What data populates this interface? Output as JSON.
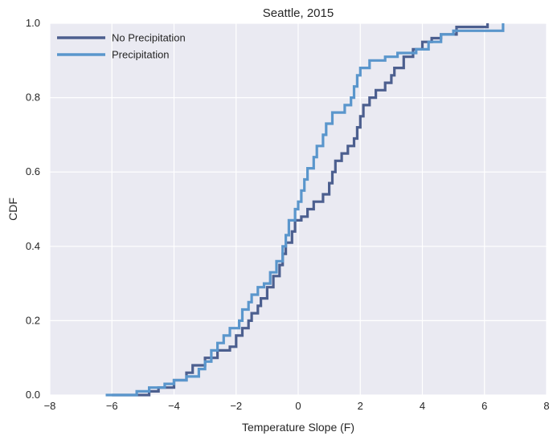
{
  "chart_data": {
    "type": "line",
    "title": "Seattle, 2015",
    "xlabel": "Temperature Slope (F)",
    "ylabel": "CDF",
    "xlim": [
      -8,
      8
    ],
    "ylim": [
      0.0,
      1.0
    ],
    "xticks": [
      -8,
      -6,
      -4,
      -2,
      0,
      2,
      4,
      6,
      8
    ],
    "xtick_labels": [
      "−8",
      "−6",
      "−4",
      "−2",
      "0",
      "2",
      "4",
      "6",
      "8"
    ],
    "yticks": [
      0.0,
      0.2,
      0.4,
      0.6,
      0.8,
      1.0
    ],
    "ytick_labels": [
      "0.0",
      "0.2",
      "0.4",
      "0.6",
      "0.8",
      "1.0"
    ],
    "grid": true,
    "legend_position": "top-left",
    "background": "#EAEAF2",
    "series": [
      {
        "name": "No Precipitation",
        "color": "#4C5F8F",
        "step": true,
        "points": [
          [
            -6.0,
            0.0
          ],
          [
            -4.8,
            0.01
          ],
          [
            -4.5,
            0.02
          ],
          [
            -4.0,
            0.04
          ],
          [
            -3.6,
            0.06
          ],
          [
            -3.4,
            0.08
          ],
          [
            -3.0,
            0.1
          ],
          [
            -2.6,
            0.12
          ],
          [
            -2.2,
            0.13
          ],
          [
            -2.0,
            0.16
          ],
          [
            -1.8,
            0.18
          ],
          [
            -1.6,
            0.2
          ],
          [
            -1.5,
            0.22
          ],
          [
            -1.3,
            0.24
          ],
          [
            -1.2,
            0.26
          ],
          [
            -1.0,
            0.29
          ],
          [
            -0.8,
            0.32
          ],
          [
            -0.6,
            0.35
          ],
          [
            -0.5,
            0.38
          ],
          [
            -0.4,
            0.41
          ],
          [
            -0.2,
            0.44
          ],
          [
            -0.1,
            0.47
          ],
          [
            0.1,
            0.48
          ],
          [
            0.3,
            0.5
          ],
          [
            0.5,
            0.52
          ],
          [
            0.8,
            0.54
          ],
          [
            1.0,
            0.57
          ],
          [
            1.1,
            0.6
          ],
          [
            1.2,
            0.63
          ],
          [
            1.4,
            0.65
          ],
          [
            1.6,
            0.67
          ],
          [
            1.8,
            0.69
          ],
          [
            1.9,
            0.72
          ],
          [
            2.0,
            0.75
          ],
          [
            2.1,
            0.78
          ],
          [
            2.3,
            0.8
          ],
          [
            2.5,
            0.82
          ],
          [
            2.8,
            0.84
          ],
          [
            3.0,
            0.86
          ],
          [
            3.1,
            0.88
          ],
          [
            3.4,
            0.91
          ],
          [
            3.7,
            0.93
          ],
          [
            4.0,
            0.95
          ],
          [
            4.3,
            0.96
          ],
          [
            4.6,
            0.97
          ],
          [
            5.1,
            0.99
          ],
          [
            6.1,
            1.0
          ]
        ]
      },
      {
        "name": "Precipitation",
        "color": "#5A96CC",
        "step": true,
        "points": [
          [
            -6.2,
            0.0
          ],
          [
            -5.2,
            0.01
          ],
          [
            -4.8,
            0.02
          ],
          [
            -4.3,
            0.03
          ],
          [
            -4.0,
            0.04
          ],
          [
            -3.6,
            0.05
          ],
          [
            -3.2,
            0.07
          ],
          [
            -3.0,
            0.09
          ],
          [
            -2.8,
            0.12
          ],
          [
            -2.6,
            0.14
          ],
          [
            -2.4,
            0.16
          ],
          [
            -2.2,
            0.18
          ],
          [
            -1.9,
            0.2
          ],
          [
            -1.8,
            0.23
          ],
          [
            -1.6,
            0.25
          ],
          [
            -1.5,
            0.27
          ],
          [
            -1.3,
            0.29
          ],
          [
            -1.1,
            0.3
          ],
          [
            -0.9,
            0.33
          ],
          [
            -0.7,
            0.36
          ],
          [
            -0.5,
            0.4
          ],
          [
            -0.4,
            0.43
          ],
          [
            -0.3,
            0.47
          ],
          [
            -0.1,
            0.5
          ],
          [
            0.0,
            0.52
          ],
          [
            0.1,
            0.55
          ],
          [
            0.2,
            0.58
          ],
          [
            0.3,
            0.61
          ],
          [
            0.5,
            0.64
          ],
          [
            0.6,
            0.67
          ],
          [
            0.8,
            0.7
          ],
          [
            0.9,
            0.73
          ],
          [
            1.1,
            0.76
          ],
          [
            1.5,
            0.78
          ],
          [
            1.7,
            0.8
          ],
          [
            1.8,
            0.83
          ],
          [
            1.9,
            0.86
          ],
          [
            2.0,
            0.88
          ],
          [
            2.3,
            0.9
          ],
          [
            2.8,
            0.91
          ],
          [
            3.2,
            0.92
          ],
          [
            3.8,
            0.93
          ],
          [
            4.2,
            0.95
          ],
          [
            4.6,
            0.97
          ],
          [
            5.0,
            0.98
          ],
          [
            6.6,
            1.0
          ]
        ]
      }
    ]
  }
}
